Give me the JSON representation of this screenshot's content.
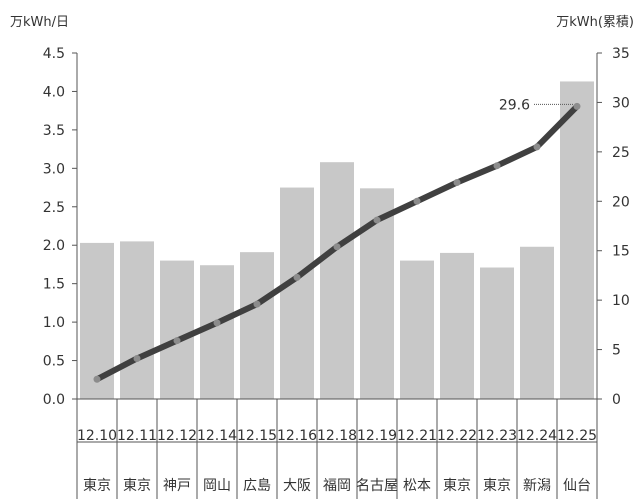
{
  "chart_data": {
    "type": "bar",
    "title": "",
    "left_axis_unit": "万kWh/日",
    "right_axis_unit": "万kWh(累積)",
    "categories": [
      "12.10",
      "12.11",
      "12.12",
      "12.14",
      "12.15",
      "12.16",
      "12.18",
      "12.19",
      "12.21",
      "12.22",
      "12.23",
      "12.24",
      "12.25"
    ],
    "locations": [
      "東京",
      "東京",
      "神戸",
      "岡山",
      "広島",
      "大阪",
      "福岡",
      "名古屋",
      "松本",
      "東京",
      "東京",
      "新潟",
      "仙台"
    ],
    "series": [
      {
        "type": "bar",
        "axis": "left",
        "color": "#c8c8c8",
        "values": [
          2.03,
          2.05,
          1.8,
          1.74,
          1.91,
          2.75,
          3.08,
          2.74,
          1.8,
          1.9,
          1.71,
          1.98,
          4.13
        ]
      },
      {
        "type": "line",
        "axis": "right",
        "color": "#404040",
        "marker_color": "#8c8c8c",
        "values": [
          2.0,
          4.1,
          5.9,
          7.7,
          9.6,
          12.3,
          15.4,
          18.1,
          20.0,
          21.9,
          23.6,
          25.5,
          29.6
        ]
      }
    ],
    "annotation": {
      "text": "29.6",
      "category": "12.25"
    },
    "ylim_left": [
      0,
      4.5
    ],
    "yticks_left": [
      "0.0",
      "0.5",
      "1.0",
      "1.5",
      "2.0",
      "2.5",
      "3.0",
      "3.5",
      "4.0",
      "4.5"
    ],
    "ylim_right": [
      0,
      35
    ],
    "yticks_right": [
      "0",
      "5",
      "10",
      "15",
      "20",
      "25",
      "30",
      "35"
    ],
    "grid": false,
    "legend": "none"
  }
}
